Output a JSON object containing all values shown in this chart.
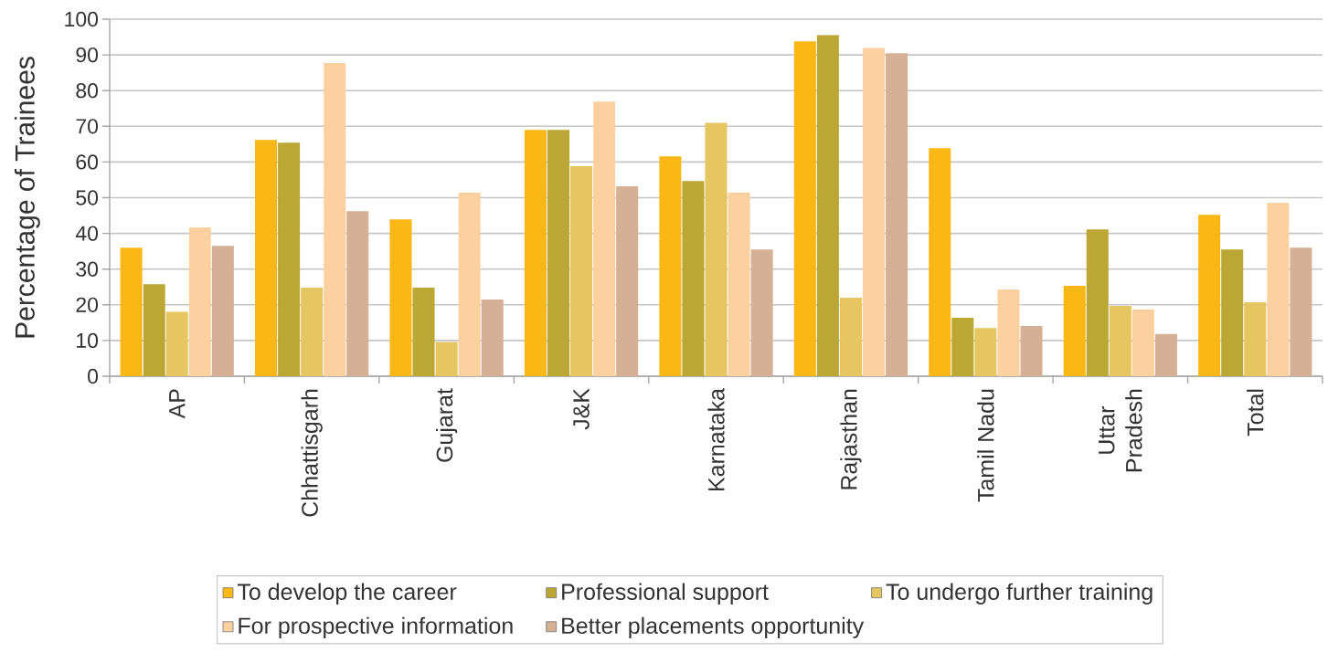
{
  "chart_data": {
    "type": "bar",
    "ylabel": "Percentage of Trainees",
    "categories": [
      "AP",
      "Chhattisgarh",
      "Gujarat",
      "J&K",
      "Karnataka",
      "Rajasthan",
      "Tamil Nadu",
      "Uttar Pradesh",
      "Total"
    ],
    "series": [
      {
        "name": "To develop the career",
        "color": "#fbb715",
        "values": [
          36.0,
          66.2,
          43.9,
          69.0,
          61.6,
          93.8,
          63.9,
          25.3,
          45.2
        ]
      },
      {
        "name": "Professional support",
        "color": "#bca634",
        "values": [
          25.8,
          65.4,
          24.8,
          69.0,
          54.7,
          95.6,
          16.4,
          41.1,
          35.5
        ]
      },
      {
        "name": "To undergo further training",
        "color": "#e6c660",
        "values": [
          18.0,
          24.8,
          9.6,
          58.8,
          71.0,
          22.0,
          13.5,
          19.7,
          20.7
        ]
      },
      {
        "name": "For prospective information",
        "color": "#fdd19f",
        "values": [
          41.7,
          87.7,
          51.4,
          76.9,
          51.4,
          92.0,
          24.3,
          18.7,
          48.6
        ]
      },
      {
        "name": "Better placements opportunity",
        "color": "#d6b095",
        "values": [
          36.5,
          46.2,
          21.5,
          53.2,
          35.5,
          90.5,
          14.1,
          11.8,
          36.0
        ]
      }
    ],
    "ylim": [
      0,
      100
    ],
    "yticks": [
      0,
      10,
      20,
      30,
      40,
      50,
      60,
      70,
      80,
      90,
      100
    ],
    "grid": "y",
    "legend": "bottom"
  }
}
